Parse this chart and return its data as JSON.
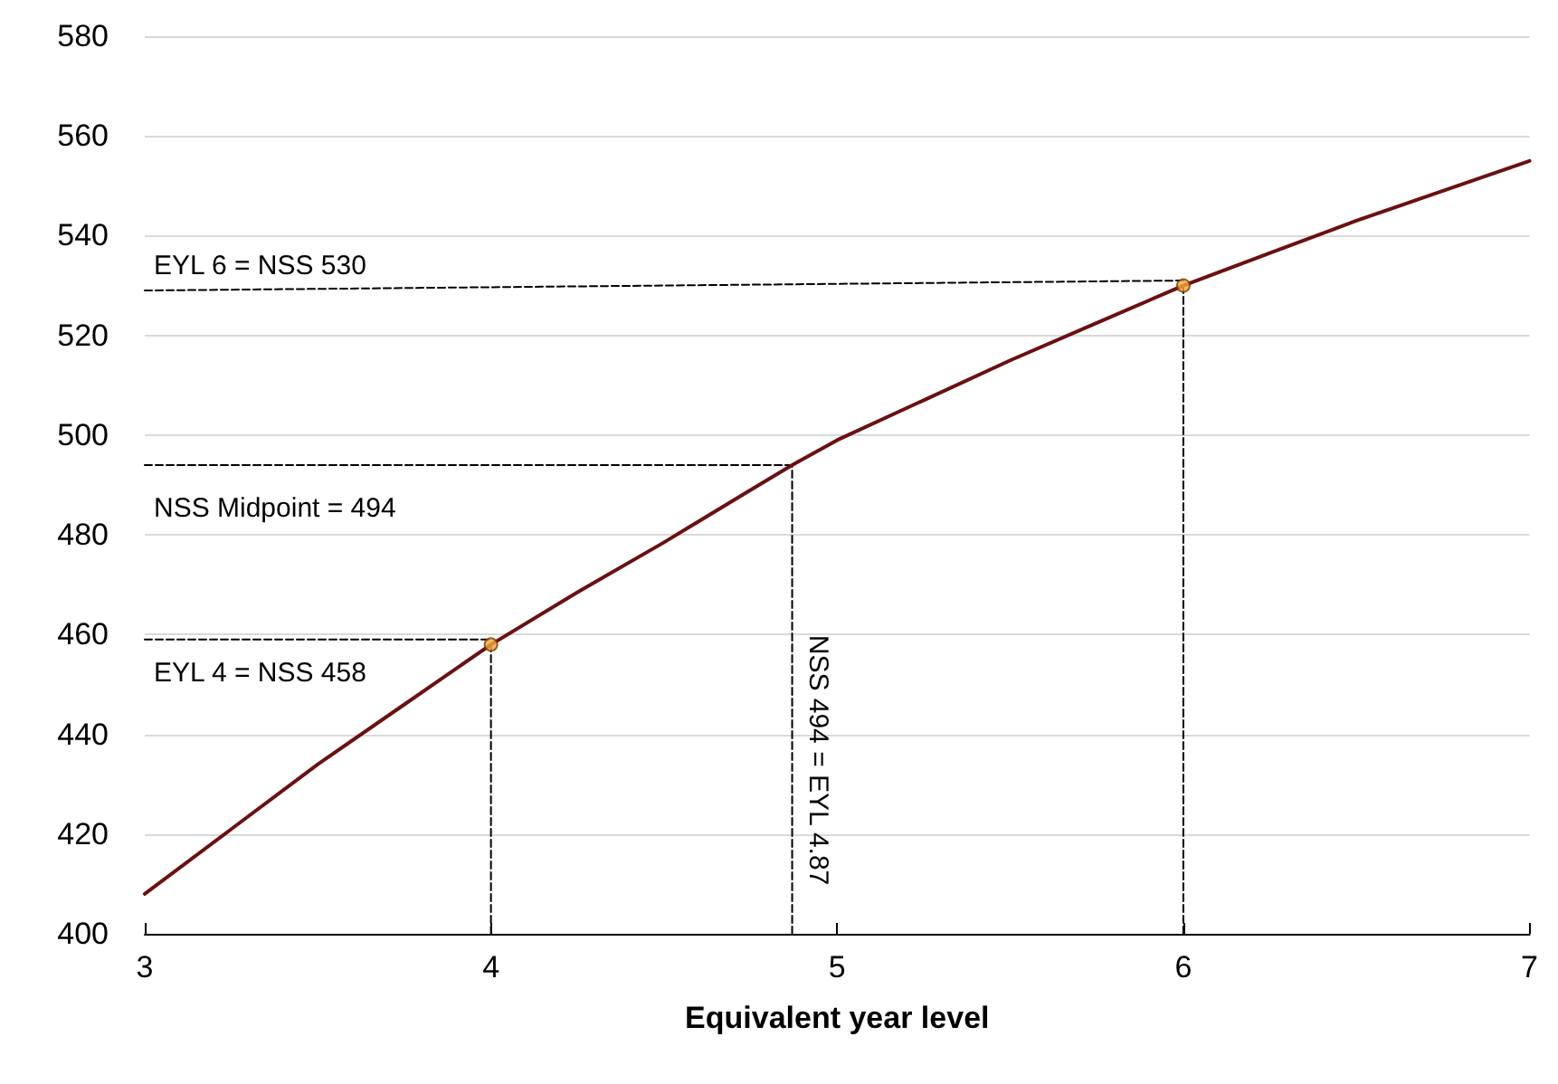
{
  "chart_data": {
    "type": "line",
    "xlabel": "Equivalent year level",
    "xlim": [
      3,
      7
    ],
    "xticks": [
      3,
      4,
      5,
      6,
      7
    ],
    "ylim": [
      400,
      580
    ],
    "yticks": [
      400,
      420,
      440,
      460,
      480,
      500,
      520,
      540,
      560,
      580
    ],
    "grid": "y",
    "series": [
      {
        "color": "#6b1010",
        "marker": "none",
        "x": [
          3,
          3.25,
          3.5,
          3.75,
          4,
          4.25,
          4.5,
          4.75,
          4.87,
          5,
          5.25,
          5.5,
          5.75,
          6,
          6.25,
          6.5,
          6.75,
          7
        ],
        "values": [
          408,
          421,
          434,
          446,
          458,
          468.5,
          478.5,
          489,
          494,
          499,
          507,
          515,
          522.5,
          530,
          536.5,
          543,
          549,
          555
        ]
      },
      {
        "type": "scatter",
        "color": "#f5a83c",
        "marker": "circle",
        "x": [
          4,
          6
        ],
        "values": [
          458,
          530
        ]
      },
      {
        "color": "#000000",
        "marker": "none",
        "line_style": "dashed",
        "x": [
          3,
          6
        ],
        "values": [
          529,
          531
        ]
      },
      {
        "color": "#000000",
        "marker": "none",
        "line_style": "dashed",
        "x": [
          6,
          6
        ],
        "values": [
          400,
          530
        ]
      },
      {
        "color": "#000000",
        "marker": "none",
        "line_style": "dashed",
        "x": [
          3,
          4.87
        ],
        "values": [
          494,
          494
        ]
      },
      {
        "color": "#000000",
        "marker": "none",
        "line_style": "dashed",
        "x": [
          4.87,
          4.87
        ],
        "values": [
          400,
          494
        ]
      },
      {
        "color": "#000000",
        "marker": "none",
        "line_style": "dashed",
        "x": [
          3,
          4
        ],
        "values": [
          459,
          459
        ]
      },
      {
        "color": "#000000",
        "marker": "none",
        "line_style": "dashed",
        "x": [
          4,
          4
        ],
        "values": [
          400,
          458
        ]
      }
    ],
    "annotations": [
      "EYL 6 = NSS 530",
      "NSS Midpoint = 494",
      "NSS 494 = EYL 4.87",
      "EYL 4 = NSS 458"
    ]
  }
}
